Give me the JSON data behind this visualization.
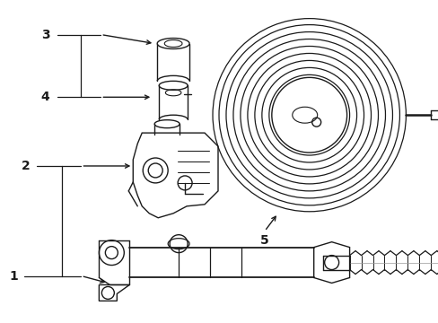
{
  "bg_color": "#ffffff",
  "line_color": "#1a1a1a",
  "line_width": 1.0,
  "fig_width": 4.89,
  "fig_height": 3.6,
  "dpi": 100,
  "label_fontsize": 10
}
